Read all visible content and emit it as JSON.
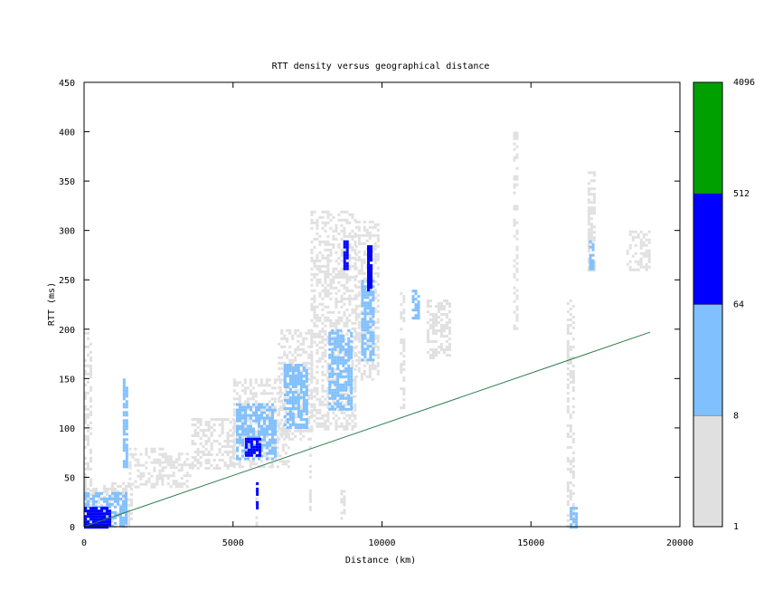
{
  "chart_data": {
    "type": "heatmap",
    "title": "RTT density versus geographical distance",
    "xlabel": "Distance (km)",
    "ylabel": "RTT (ms)",
    "xlim": [
      0,
      20000
    ],
    "ylim": [
      0,
      450
    ],
    "xticks": [
      "0",
      "5000",
      "10000",
      "15000",
      "20000"
    ],
    "yticks": [
      "0",
      "50",
      "100",
      "150",
      "200",
      "250",
      "300",
      "350",
      "400",
      "450"
    ],
    "colorbar": {
      "scale": "log",
      "labels": [
        "1",
        "8",
        "64",
        "512",
        "4096"
      ],
      "bands": [
        {
          "from": 1,
          "to": 8,
          "color": "#e0e0e0"
        },
        {
          "from": 8,
          "to": 64,
          "color": "#80c0ff"
        },
        {
          "from": 64,
          "to": 512,
          "color": "#0000ff"
        },
        {
          "from": 512,
          "to": 4096,
          "color": "#00a000"
        }
      ]
    },
    "reference_line": {
      "color": "#2e7d4f",
      "x": [
        0,
        19000
      ],
      "y": [
        0,
        197
      ]
    },
    "density_regions": [
      {
        "x": [
          0,
          250
        ],
        "y": [
          0,
          200
        ],
        "level": 1
      },
      {
        "x": [
          0,
          1600
        ],
        "y": [
          0,
          45
        ],
        "level": 1
      },
      {
        "x": [
          0,
          1400
        ],
        "y": [
          0,
          35
        ],
        "level": 2
      },
      {
        "x": [
          0,
          900
        ],
        "y": [
          0,
          20
        ],
        "level": 3
      },
      {
        "x": [
          1300,
          1450
        ],
        "y": [
          60,
          150
        ],
        "level": 2
      },
      {
        "x": [
          1500,
          2600
        ],
        "y": [
          40,
          80
        ],
        "level": 1
      },
      {
        "x": [
          2600,
          3600
        ],
        "y": [
          40,
          75
        ],
        "level": 1
      },
      {
        "x": [
          3600,
          5000
        ],
        "y": [
          60,
          110
        ],
        "level": 1
      },
      {
        "x": [
          5000,
          6900
        ],
        "y": [
          60,
          150
        ],
        "level": 1
      },
      {
        "x": [
          5100,
          6400
        ],
        "y": [
          70,
          125
        ],
        "level": 2
      },
      {
        "x": [
          5400,
          5900
        ],
        "y": [
          72,
          90
        ],
        "level": 3
      },
      {
        "x": [
          6500,
          7600
        ],
        "y": [
          90,
          200
        ],
        "level": 1
      },
      {
        "x": [
          6700,
          7500
        ],
        "y": [
          100,
          165
        ],
        "level": 2
      },
      {
        "x": [
          7600,
          9100
        ],
        "y": [
          100,
          320
        ],
        "level": 1
      },
      {
        "x": [
          8200,
          9000
        ],
        "y": [
          120,
          200
        ],
        "level": 2
      },
      {
        "x": [
          8700,
          8800
        ],
        "y": [
          260,
          290
        ],
        "level": 3
      },
      {
        "x": [
          9100,
          9900
        ],
        "y": [
          150,
          310
        ],
        "level": 1
      },
      {
        "x": [
          9300,
          9700
        ],
        "y": [
          170,
          250
        ],
        "level": 2
      },
      {
        "x": [
          9500,
          9600
        ],
        "y": [
          240,
          285
        ],
        "level": 3
      },
      {
        "x": [
          5750,
          5800
        ],
        "y": [
          0,
          60
        ],
        "level": 1
      },
      {
        "x": [
          5770,
          5790
        ],
        "y": [
          20,
          45
        ],
        "level": 3
      },
      {
        "x": [
          7550,
          7620
        ],
        "y": [
          0,
          90
        ],
        "level": 1
      },
      {
        "x": [
          8600,
          8700
        ],
        "y": [
          0,
          40
        ],
        "level": 1
      },
      {
        "x": [
          10600,
          10750
        ],
        "y": [
          120,
          240
        ],
        "level": 1
      },
      {
        "x": [
          11000,
          11200
        ],
        "y": [
          210,
          240
        ],
        "level": 2
      },
      {
        "x": [
          11500,
          12300
        ],
        "y": [
          170,
          230
        ],
        "level": 1
      },
      {
        "x": [
          14400,
          14500
        ],
        "y": [
          200,
          400
        ],
        "level": 1
      },
      {
        "x": [
          16200,
          16400
        ],
        "y": [
          0,
          230
        ],
        "level": 1
      },
      {
        "x": [
          16300,
          16500
        ],
        "y": [
          0,
          20
        ],
        "level": 2
      },
      {
        "x": [
          16900,
          17100
        ],
        "y": [
          260,
          360
        ],
        "level": 1
      },
      {
        "x": [
          16950,
          17050
        ],
        "y": [
          260,
          290
        ],
        "level": 2
      },
      {
        "x": [
          18200,
          19000
        ],
        "y": [
          260,
          300
        ],
        "level": 1
      }
    ]
  }
}
